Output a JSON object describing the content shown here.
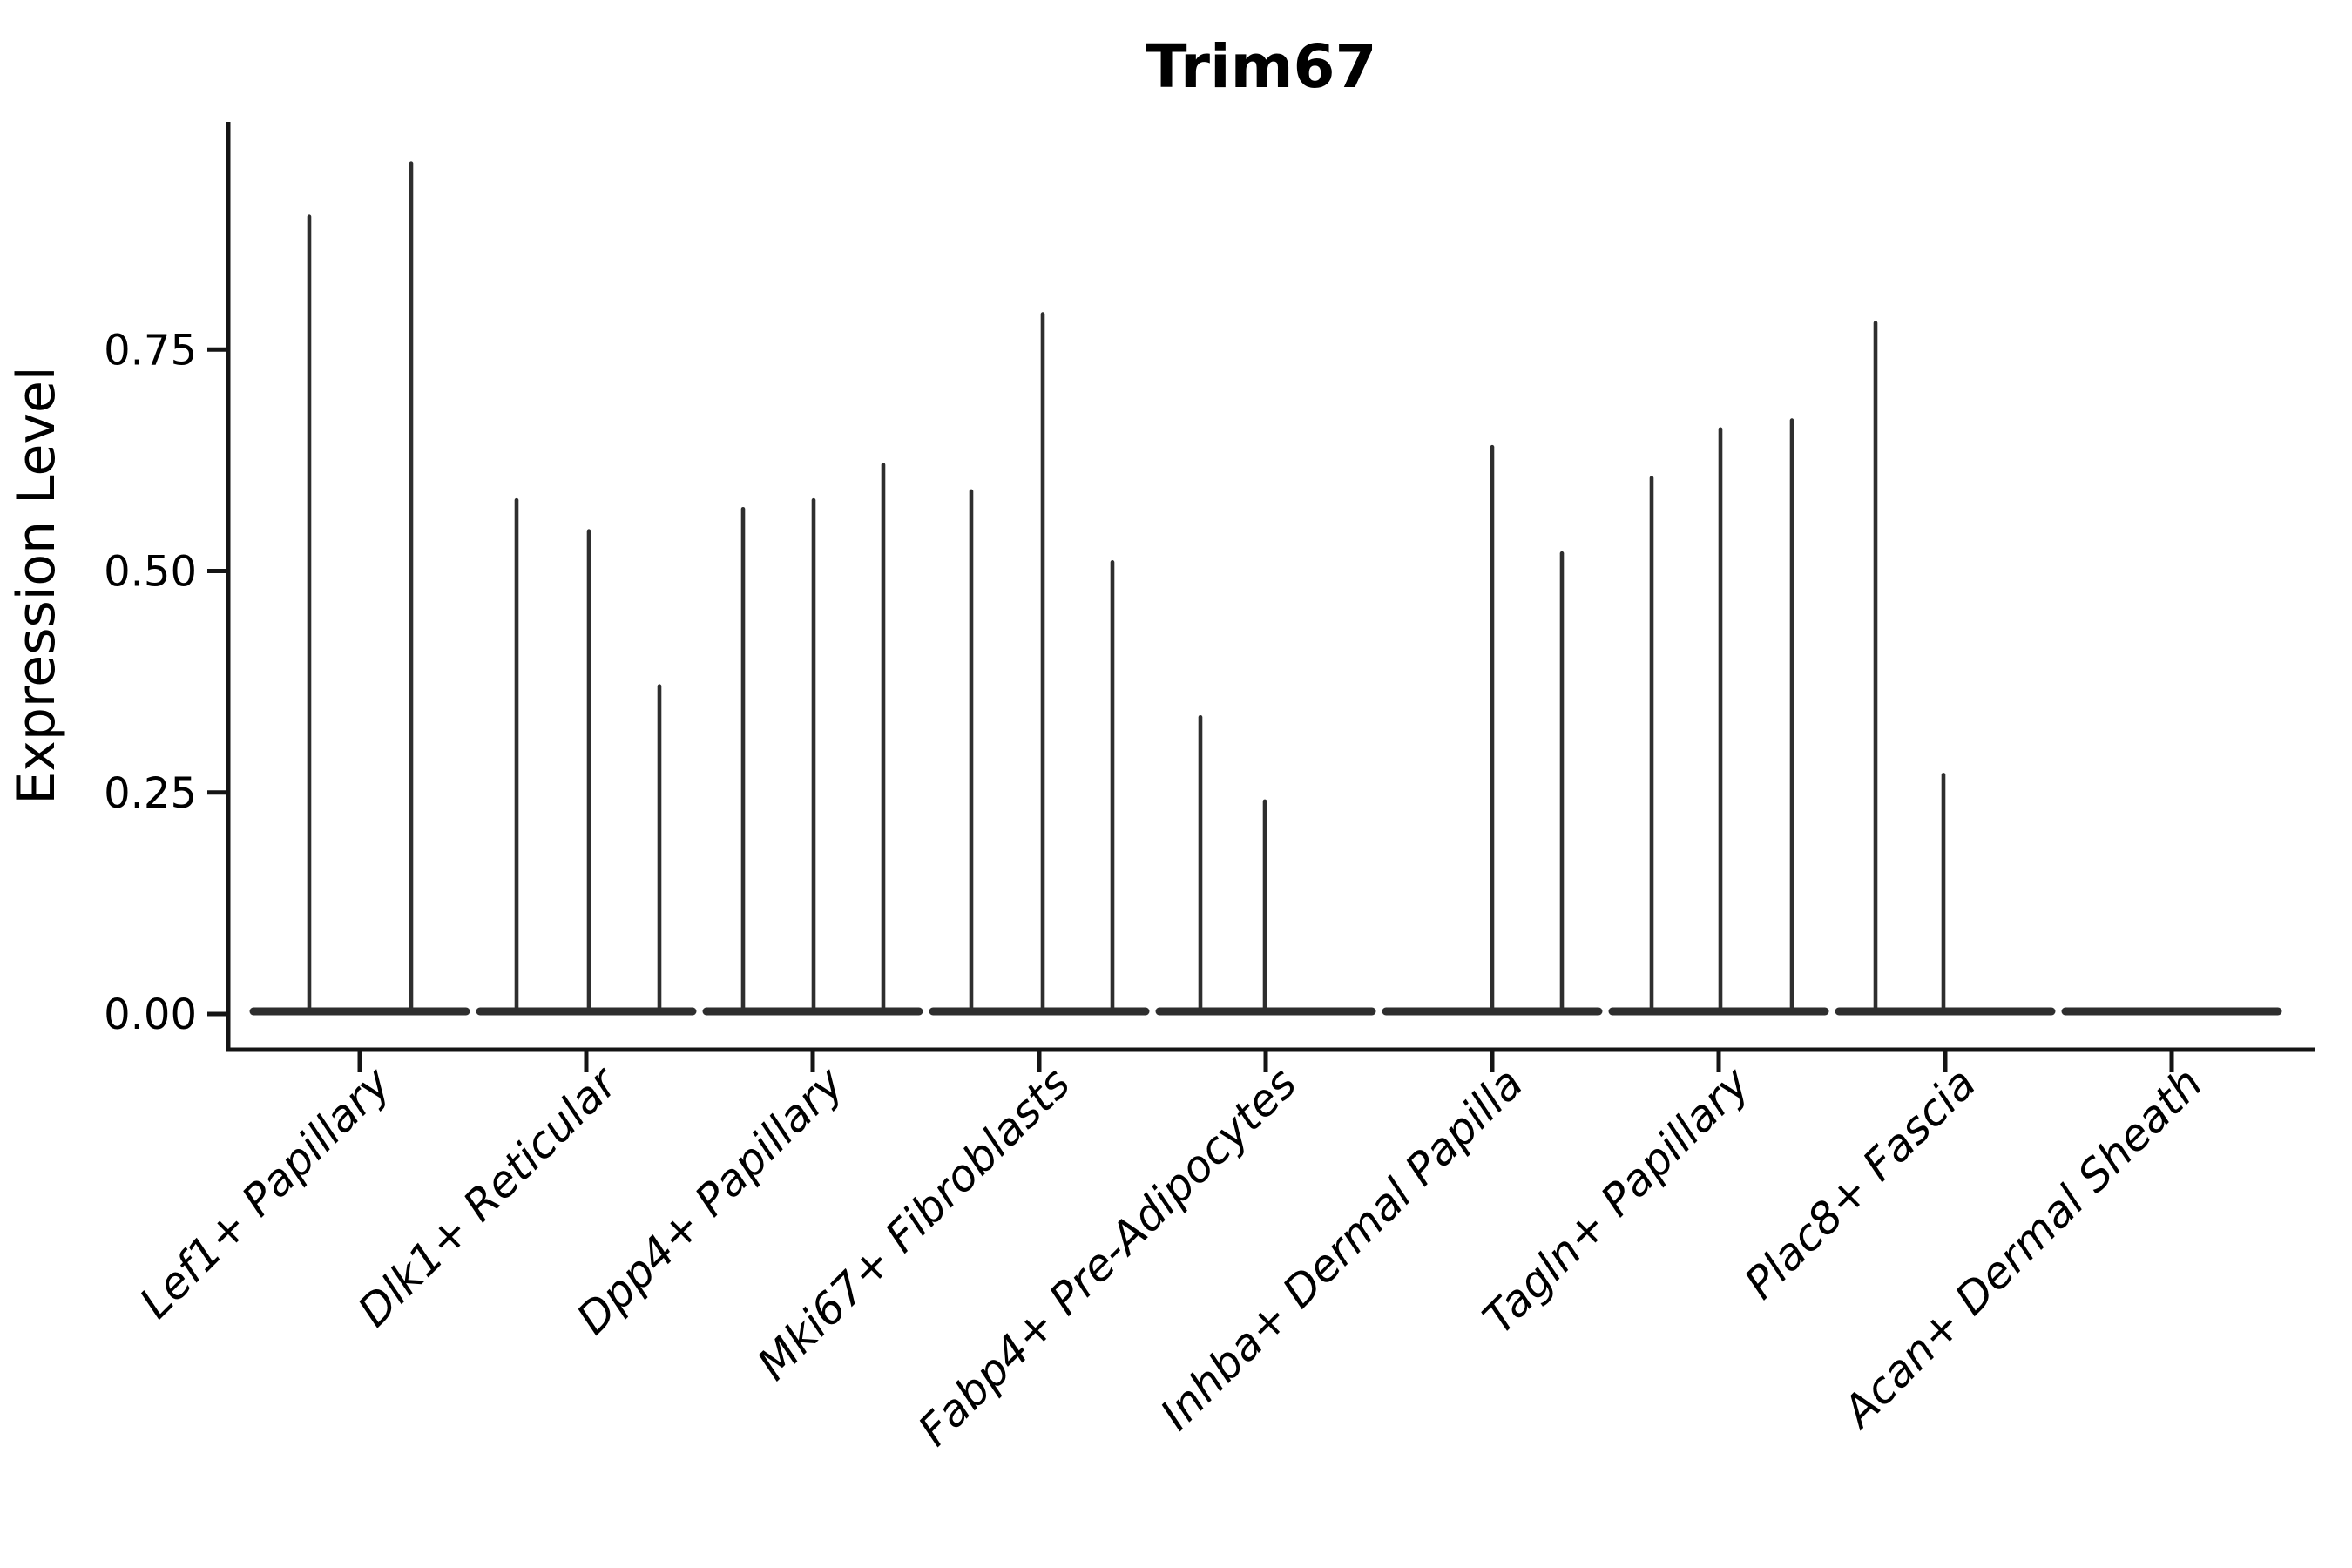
{
  "chart_data": {
    "type": "violin",
    "title": "Trim67",
    "ylabel": "Expression Level",
    "xlabel": "",
    "ylim": [
      0,
      1.01
    ],
    "yticks": [
      "0.00",
      "0.25",
      "0.50",
      "0.75"
    ],
    "ytick_values": [
      0.0,
      0.25,
      0.5,
      0.75
    ],
    "grid": false,
    "legend": "none",
    "categories": [
      "Lef1+ Papillary",
      "Dlk1+ Reticular",
      "Dpp4+ Papillary",
      "Mki67+ Fibroblasts",
      "Fabp4+ Pre-Adipocytes",
      "Inhba+ Dermal Papilla",
      "Tagln+ Papillary",
      "Plac8+ Fascia",
      "Acan+ Dermal Sheath"
    ],
    "groups": [
      {
        "category": "Lef1+ Papillary",
        "violins": [
          {
            "dx": -58,
            "max": 0.9
          },
          {
            "dx": 59,
            "max": 0.96
          }
        ]
      },
      {
        "category": "Dlk1+ Reticular",
        "violins": [
          {
            "dx": -80,
            "max": 0.58
          },
          {
            "dx": 3,
            "max": 0.545
          },
          {
            "dx": 84,
            "max": 0.37
          }
        ]
      },
      {
        "category": "Dpp4+ Papillary",
        "violins": [
          {
            "dx": -80,
            "max": 0.57
          },
          {
            "dx": 1,
            "max": 0.58
          },
          {
            "dx": 81,
            "max": 0.62
          }
        ]
      },
      {
        "category": "Mki67+ Fibroblasts",
        "violins": [
          {
            "dx": -78,
            "max": 0.59
          },
          {
            "dx": 4,
            "max": 0.79
          },
          {
            "dx": 84,
            "max": 0.51
          }
        ]
      },
      {
        "category": "Fabp4+ Pre-Adipocytes",
        "violins": [
          {
            "dx": -75,
            "max": 0.335
          },
          {
            "dx": -1,
            "max": 0.24
          }
        ]
      },
      {
        "category": "Inhba+ Dermal Papilla",
        "violins": [
          {
            "dx": 0,
            "max": 0.64
          },
          {
            "dx": 80,
            "max": 0.52
          }
        ]
      },
      {
        "category": "Tagln+ Papillary",
        "violins": [
          {
            "dx": -77,
            "max": 0.605
          },
          {
            "dx": 2,
            "max": 0.66
          },
          {
            "dx": 84,
            "max": 0.67
          }
        ]
      },
      {
        "category": "Plac8+ Fascia",
        "violins": [
          {
            "dx": -80,
            "max": 0.78
          },
          {
            "dx": -2,
            "max": 0.27
          }
        ]
      },
      {
        "category": "Acan+ Dermal Sheath",
        "violins": []
      }
    ],
    "line_color": "#2e2e2e",
    "axis_color": "#141414",
    "background": "#ffffff"
  }
}
